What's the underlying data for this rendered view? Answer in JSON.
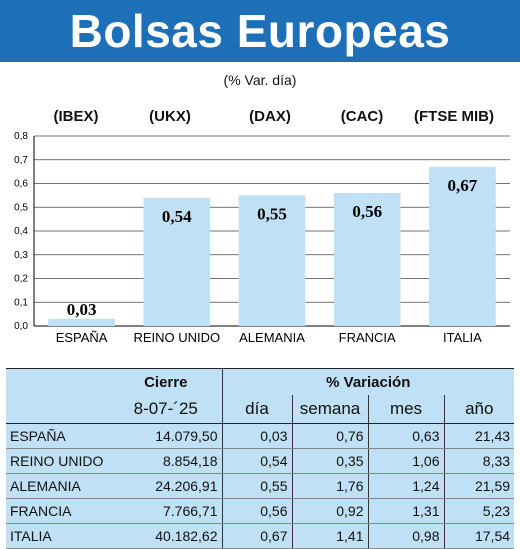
{
  "title": "Bolsas Europeas",
  "subtitle": "(% Var. día)",
  "colors": {
    "banner": "#1d6fb8",
    "bar": "#bfe0f5",
    "table_bg": "#bfe0f5"
  },
  "chart_data": {
    "type": "bar",
    "categories": [
      "ESPAÑA",
      "REINO UNIDO",
      "ALEMANIA",
      "FRANCIA",
      "ITALIA"
    ],
    "index_codes": [
      "(IBEX)",
      "(UKX)",
      "(DAX)",
      "(CAC)",
      "(FTSE MIB)"
    ],
    "values": [
      0.03,
      0.54,
      0.55,
      0.56,
      0.67
    ],
    "value_labels": [
      "0,03",
      "0,54",
      "0,55",
      "0,56",
      "0,67"
    ],
    "ylim": [
      0,
      0.8
    ],
    "yticks": [
      "0,0",
      "0,1",
      "0,2",
      "0,3",
      "0,4",
      "0,5",
      "0,6",
      "0,7",
      "0,8"
    ],
    "grid": true,
    "title": "",
    "xlabel": "",
    "ylabel": ""
  },
  "table": {
    "group_headers": {
      "cierre": "Cierre",
      "variacion": "% Variación"
    },
    "date": "8-07-´25",
    "columns": [
      "día",
      "semana",
      "mes",
      "año"
    ],
    "rows": [
      {
        "name": "ESPAÑA",
        "cierre": "14.079,50",
        "dia": "0,03",
        "semana": "0,76",
        "mes": "0,63",
        "anio": "21,43"
      },
      {
        "name": "REINO UNIDO",
        "cierre": "8.854,18",
        "dia": "0,54",
        "semana": "0,35",
        "mes": "1,06",
        "anio": "8,33"
      },
      {
        "name": "ALEMANIA",
        "cierre": "24.206,91",
        "dia": "0,55",
        "semana": "1,76",
        "mes": "1,24",
        "anio": "21,59"
      },
      {
        "name": "FRANCIA",
        "cierre": "7.766,71",
        "dia": "0,56",
        "semana": "0,92",
        "mes": "1,31",
        "anio": "5,23"
      },
      {
        "name": "ITALIA",
        "cierre": "40.182,62",
        "dia": "0,67",
        "semana": "1,41",
        "mes": "0,98",
        "anio": "17,54"
      }
    ]
  }
}
